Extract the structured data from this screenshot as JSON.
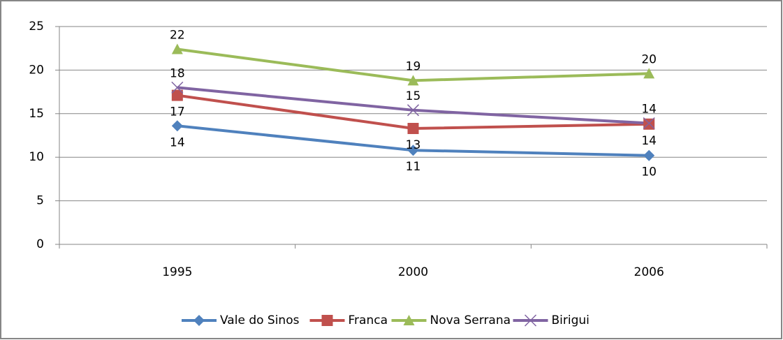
{
  "chart_data": {
    "type": "line",
    "categories": [
      "1995",
      "2000",
      "2006"
    ],
    "series": [
      {
        "name": "Vale do Sinos",
        "color": "#4f81bd",
        "marker": "diamond",
        "values": [
          13.6,
          10.8,
          10.2
        ],
        "value_labels": [
          "14",
          "11",
          "10"
        ]
      },
      {
        "name": "Franca",
        "color": "#c0504d",
        "marker": "square",
        "values": [
          17.1,
          13.3,
          13.8
        ],
        "value_labels": [
          "17",
          "13",
          "14"
        ]
      },
      {
        "name": "Nova Serrana",
        "color": "#9bbb59",
        "marker": "triangle",
        "values": [
          22.4,
          18.8,
          19.6
        ],
        "value_labels": [
          "22",
          "19",
          "20"
        ]
      },
      {
        "name": "Birigui",
        "color": "#8064a2",
        "marker": "x",
        "values": [
          18.0,
          15.4,
          13.9
        ],
        "value_labels": [
          "18",
          "15",
          "14"
        ]
      }
    ],
    "ylim": [
      0,
      25
    ],
    "yticks": [
      0,
      5,
      10,
      15,
      20,
      25
    ],
    "grid": true,
    "legend": "bottom"
  }
}
